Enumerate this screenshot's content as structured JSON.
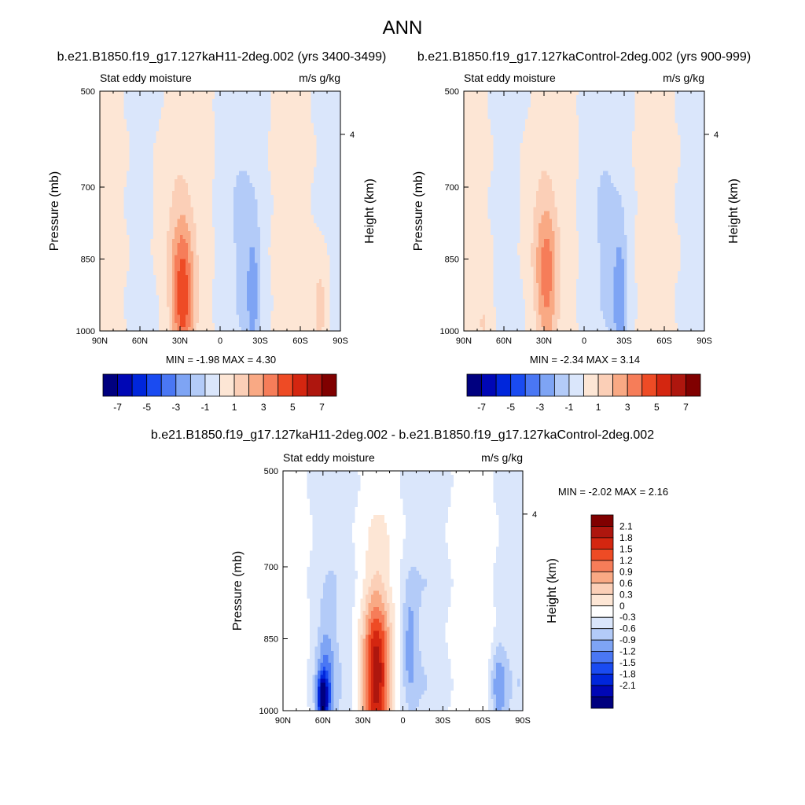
{
  "figure": {
    "main_title": "ANN"
  },
  "colors": {
    "diverging_main": [
      "#00007f",
      "#0007b5",
      "#0026db",
      "#1a4bf1",
      "#4a77f4",
      "#7ea4f4",
      "#b3cbf8",
      "#dae6fb",
      "#fde6d5",
      "#fbcfb7",
      "#f9a984",
      "#f67d59",
      "#ee4b25",
      "#d42610",
      "#ae160e",
      "#800000"
    ],
    "diverging_diff": [
      "#00007f",
      "#0007b5",
      "#0026db",
      "#1a4bf1",
      "#4a77f4",
      "#7ea4f4",
      "#b3cbf8",
      "#dae6fb",
      "#ffffff",
      "#fde6d5",
      "#fbcfb7",
      "#f9a984",
      "#f67d59",
      "#ee4b25",
      "#d42610",
      "#ae160e",
      "#800000"
    ]
  },
  "chart_data": [
    {
      "type": "heatmap",
      "title": "b.e21.B1850.f19_g17.127kaH11-2deg.002 (yrs 3400-3499)",
      "left_label": "Stat eddy moisture",
      "right_label": "m/s g/kg",
      "ylabel": "Pressure (mb)",
      "y2label": "Height (km)",
      "x_ticks": [
        "90N",
        "60N",
        "30N",
        "0",
        "30S",
        "60S",
        "90S"
      ],
      "x_tick_values": [
        90,
        60,
        30,
        0,
        -30,
        -60,
        -90
      ],
      "y_ticks": [
        "500",
        "700",
        "850",
        "1000"
      ],
      "y_tick_values": [
        500,
        700,
        850,
        1000
      ],
      "y2_ticks": [
        "4"
      ],
      "y2_tick_values": [
        4
      ],
      "xlim": [
        90,
        -90
      ],
      "ylim": [
        500,
        1000
      ],
      "min_label": "MIN =  -1.98",
      "max_label": "MAX =   4.30",
      "min": -1.98,
      "max": 4.3,
      "colorbar_labels": [
        "-7",
        "-5",
        "-3",
        "-1",
        "1",
        "3",
        "5",
        "7"
      ],
      "levels": [
        -7,
        -6,
        -5,
        -4,
        -3,
        -2,
        -1,
        0,
        1,
        2,
        3,
        4,
        5,
        6,
        7
      ],
      "features": [
        {
          "lat": 28,
          "p": 930,
          "value": 4.3,
          "sigma_lat": 6,
          "sigma_p": 110
        },
        {
          "lat": 35,
          "p": 760,
          "value": 0.8,
          "sigma_lat": 10,
          "sigma_p": 160
        },
        {
          "lat": -25,
          "p": 920,
          "value": -1.9,
          "sigma_lat": 4,
          "sigma_p": 110
        },
        {
          "lat": -15,
          "p": 800,
          "value": -0.9,
          "sigma_lat": 10,
          "sigma_p": 250
        },
        {
          "lat": -75,
          "p": 950,
          "value": 1.6,
          "sigma_lat": 4,
          "sigma_p": 70
        }
      ]
    },
    {
      "type": "heatmap",
      "title": "b.e21.B1850.f19_g17.127kaControl-2deg.002 (yrs 900-999)",
      "left_label": "Stat eddy moisture",
      "right_label": "m/s g/kg",
      "ylabel": "Pressure (mb)",
      "y2label": "Height (km)",
      "x_ticks": [
        "90N",
        "60N",
        "30N",
        "0",
        "30S",
        "60S",
        "90S"
      ],
      "x_tick_values": [
        90,
        60,
        30,
        0,
        -30,
        -60,
        -90
      ],
      "y_ticks": [
        "500",
        "700",
        "850",
        "1000"
      ],
      "y_tick_values": [
        500,
        700,
        850,
        1000
      ],
      "y2_ticks": [
        "4"
      ],
      "y2_tick_values": [
        4
      ],
      "xlim": [
        90,
        -90
      ],
      "ylim": [
        500,
        1000
      ],
      "min_label": "MIN =  -2.34",
      "max_label": "MAX =   3.14",
      "min": -2.34,
      "max": 3.14,
      "colorbar_labels": [
        "-7",
        "-5",
        "-3",
        "-1",
        "1",
        "3",
        "5",
        "7"
      ],
      "levels": [
        -7,
        -6,
        -5,
        -4,
        -3,
        -2,
        -1,
        0,
        1,
        2,
        3,
        4,
        5,
        6,
        7
      ],
      "features": [
        {
          "lat": 28,
          "p": 890,
          "value": 3.1,
          "sigma_lat": 6,
          "sigma_p": 110
        },
        {
          "lat": 35,
          "p": 760,
          "value": 0.7,
          "sigma_lat": 9,
          "sigma_p": 150
        },
        {
          "lat": -27,
          "p": 930,
          "value": -2.3,
          "sigma_lat": 4,
          "sigma_p": 110
        },
        {
          "lat": -15,
          "p": 800,
          "value": -0.9,
          "sigma_lat": 10,
          "sigma_p": 250
        },
        {
          "lat": 75,
          "p": 980,
          "value": 1.0,
          "sigma_lat": 4,
          "sigma_p": 40
        }
      ]
    },
    {
      "type": "heatmap",
      "title": "b.e21.B1850.f19_g17.127kaH11-2deg.002 - b.e21.B1850.f19_g17.127kaControl-2deg.002",
      "left_label": "Stat eddy moisture",
      "right_label": "m/s g/kg",
      "ylabel": "Pressure (mb)",
      "y2label": "Height (km)",
      "x_ticks": [
        "90N",
        "60N",
        "30N",
        "0",
        "30S",
        "60S",
        "90S"
      ],
      "x_tick_values": [
        90,
        60,
        30,
        0,
        -30,
        -60,
        -90
      ],
      "y_ticks": [
        "500",
        "700",
        "850",
        "1000"
      ],
      "y_tick_values": [
        500,
        700,
        850,
        1000
      ],
      "y2_ticks": [
        "4"
      ],
      "y2_tick_values": [
        4
      ],
      "xlim": [
        90,
        -90
      ],
      "ylim": [
        500,
        1000
      ],
      "min_label": "MIN =  -2.02",
      "max_label": "MAX =   2.16",
      "min": -2.02,
      "max": 2.16,
      "colorbar_labels": [
        "2.1",
        "1.8",
        "1.5",
        "1.2",
        "0.9",
        "0.6",
        "0.3",
        "0",
        "-0.3",
        "-0.6",
        "-0.9",
        "-1.2",
        "-1.5",
        "-1.8",
        "-2.1"
      ],
      "levels": [
        -2.1,
        -1.8,
        -1.5,
        -1.2,
        -0.9,
        -0.6,
        -0.3,
        0,
        0.3,
        0.6,
        0.9,
        1.2,
        1.5,
        1.8,
        2.1
      ],
      "features": [
        {
          "lat": 20,
          "p": 930,
          "value": 2.1,
          "sigma_lat": 7,
          "sigma_p": 120
        },
        {
          "lat": 60,
          "p": 975,
          "value": -2.0,
          "sigma_lat": 3,
          "sigma_p": 35
        },
        {
          "lat": 58,
          "p": 920,
          "value": -0.7,
          "sigma_lat": 5,
          "sigma_p": 80
        },
        {
          "lat": -5,
          "p": 860,
          "value": -0.7,
          "sigma_lat": 4,
          "sigma_p": 90
        },
        {
          "lat": -72,
          "p": 950,
          "value": -0.8,
          "sigma_lat": 4,
          "sigma_p": 60
        }
      ]
    }
  ]
}
